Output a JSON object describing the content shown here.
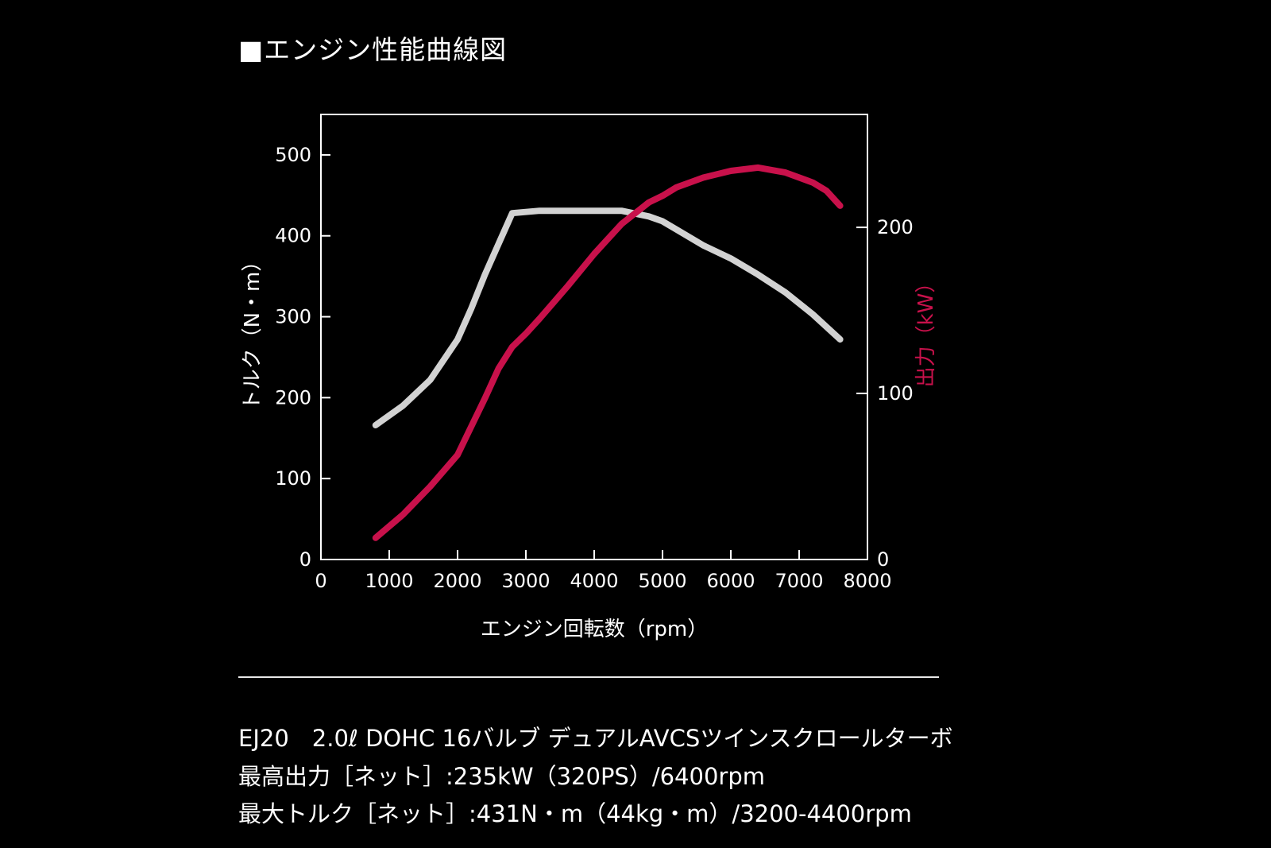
{
  "title": "■エンジン性能曲線図",
  "chart_data": {
    "type": "line",
    "xlabel": "エンジン回転数（rpm）",
    "ylabel_left": "トルク（N・m）",
    "ylabel_right": "出力（kW）",
    "xlim": [
      0,
      8000
    ],
    "ylim_left": [
      0,
      550
    ],
    "ylim_right": [
      0,
      268
    ],
    "x_ticks": [
      0,
      1000,
      2000,
      3000,
      4000,
      5000,
      6000,
      7000,
      8000
    ],
    "y_ticks_left": [
      0,
      100,
      200,
      300,
      400,
      500
    ],
    "y_ticks_right": [
      0,
      100,
      200
    ],
    "grid": false,
    "colors": {
      "torque": "#d2d2d2",
      "power": "#c8114b",
      "axis": "#ffffff",
      "right_label": "#c8114b"
    },
    "series": [
      {
        "axis": "left",
        "x": [
          800,
          1200,
          1600,
          2000,
          2200,
          2400,
          2600,
          2800,
          3200,
          3600,
          4000,
          4400,
          4800,
          5000,
          5200,
          5600,
          6000,
          6400,
          6800,
          7200,
          7600
        ],
        "values": [
          166,
          190,
          222,
          272,
          310,
          352,
          390,
          428,
          431,
          431,
          431,
          431,
          424,
          418,
          408,
          388,
          372,
          352,
          330,
          303,
          272
        ]
      },
      {
        "axis": "right",
        "x": [
          800,
          1200,
          1600,
          2000,
          2200,
          2400,
          2600,
          2800,
          3000,
          3200,
          3600,
          4000,
          4400,
          4800,
          5000,
          5200,
          5600,
          6000,
          6400,
          6800,
          7200,
          7400,
          7600
        ],
        "values": [
          13,
          27,
          44,
          63,
          80,
          97,
          115,
          128,
          136,
          145,
          164,
          184,
          202,
          215,
          219,
          224,
          230,
          234,
          236,
          233,
          227,
          222,
          213
        ]
      }
    ]
  },
  "spec": {
    "line1": "EJ20　2.0ℓ DOHC 16バルブ デュアルAVCSツインスクロールターボ",
    "line2": "最高出力［ネット］:235kW（320PS）/6400rpm",
    "line3": "最大トルク［ネット］:431N・m（44kg・m）/3200-4400rpm"
  }
}
